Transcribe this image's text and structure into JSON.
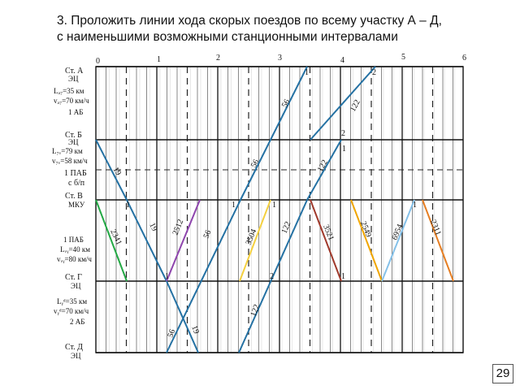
{
  "title_line1": "3. Проложить линии хода скорых поездов по всему участку А – Д,",
  "title_line2": "с наименьшими возможными станционными интервалами",
  "page_number": "29",
  "hours": [
    "0",
    "1",
    "2",
    "3",
    "4",
    "5",
    "6"
  ],
  "stations": [
    {
      "name": "Ст. А",
      "code": "ЭЦ"
    },
    {
      "name": "Ст. Б",
      "code": "ЭЦ"
    },
    {
      "name": "Ст. В",
      "code": "МКУ"
    },
    {
      "name": "Ст. Г",
      "code": "ЭЦ"
    },
    {
      "name": "Ст. Д",
      "code": "ЭЦ"
    }
  ],
  "segments": [
    {
      "length": "Lₐ₇=35 км",
      "speed": "vₐ₇=70 км/ч",
      "block": "1 АБ"
    },
    {
      "length": "L₇ᵥ=79 км",
      "speed": "v₇ᵥ=58 км/ч",
      "block": "1 ПАБ",
      "block2": "с б/п"
    },
    {
      "length": "1 ПАБ",
      "speed": "Lᵥᵧ=40 км",
      "block": "vᵥᵧ=80 км/ч"
    },
    {
      "length": "Lᵧᵈ=35 км",
      "speed": "vᵧᵈ=70 км/ч",
      "block": "2 АБ"
    }
  ],
  "colors": {
    "blue": "#2471a3",
    "green": "#22a844",
    "purple": "#8e44ad",
    "yellow": "#f4d03f",
    "brown": "#a0392b",
    "gold": "#f0a500",
    "lightblue": "#85c1e9",
    "orange": "#e67e22"
  },
  "trains": [
    {
      "label": "56",
      "color": "#2471a3"
    },
    {
      "label": "122",
      "color": "#2471a3"
    },
    {
      "label": "56",
      "color": "#2471a3"
    },
    {
      "label": "122",
      "color": "#2471a3"
    },
    {
      "label": "19",
      "color": "#2471a3"
    },
    {
      "label": "19",
      "color": "#2471a3"
    },
    {
      "label": "2341",
      "color": "#22a844"
    },
    {
      "label": "2512",
      "color": "#8e44ad"
    },
    {
      "label": "56",
      "color": "#2471a3"
    },
    {
      "label": "3504",
      "color": "#f4d03f"
    },
    {
      "label": "122",
      "color": "#2471a3"
    },
    {
      "label": "3521",
      "color": "#a0392b"
    },
    {
      "label": "2549",
      "color": "#f0a500"
    },
    {
      "label": "6954",
      "color": "#85c1e9"
    },
    {
      "label": "2311",
      "color": "#e67e22"
    },
    {
      "label": "56",
      "color": "#2471a3"
    },
    {
      "label": "19",
      "color": "#2471a3"
    },
    {
      "label": "122",
      "color": "#2471a3"
    }
  ],
  "marks": [
    "1",
    "2",
    "1",
    "2",
    "1",
    "1",
    "1",
    "1",
    "1",
    "2",
    "1"
  ]
}
